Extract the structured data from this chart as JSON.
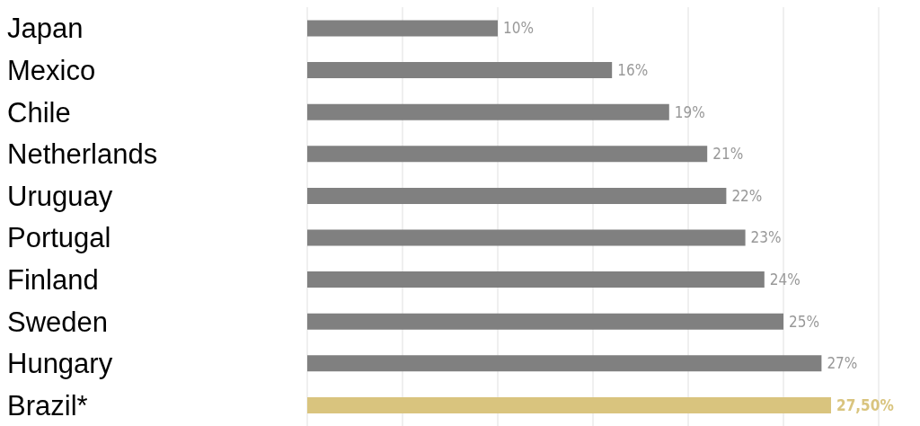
{
  "chart_data": {
    "type": "bar",
    "orientation": "horizontal",
    "categories": [
      "Japan",
      "Mexico",
      "Chile",
      "Netherlands",
      "Uruguay",
      "Portugal",
      "Finland",
      "Sweden",
      "Hungary",
      "Brazil*"
    ],
    "values": [
      10,
      16,
      19,
      21,
      22,
      23,
      24,
      25,
      27,
      27.5
    ],
    "colors": [
      "#808080",
      "#808080",
      "#808080",
      "#808080",
      "#808080",
      "#808080",
      "#808080",
      "#808080",
      "#808080",
      "#d9c47e"
    ],
    "value_labels": [
      "10%",
      "16%",
      "19%",
      "21%",
      "22%",
      "23%",
      "24%",
      "25%",
      "27%",
      "27,50%"
    ],
    "xlim": [
      0,
      30
    ],
    "xticks": [
      0,
      5,
      10,
      15,
      20,
      25,
      30
    ],
    "grid": "x",
    "tick_labels": "y"
  }
}
